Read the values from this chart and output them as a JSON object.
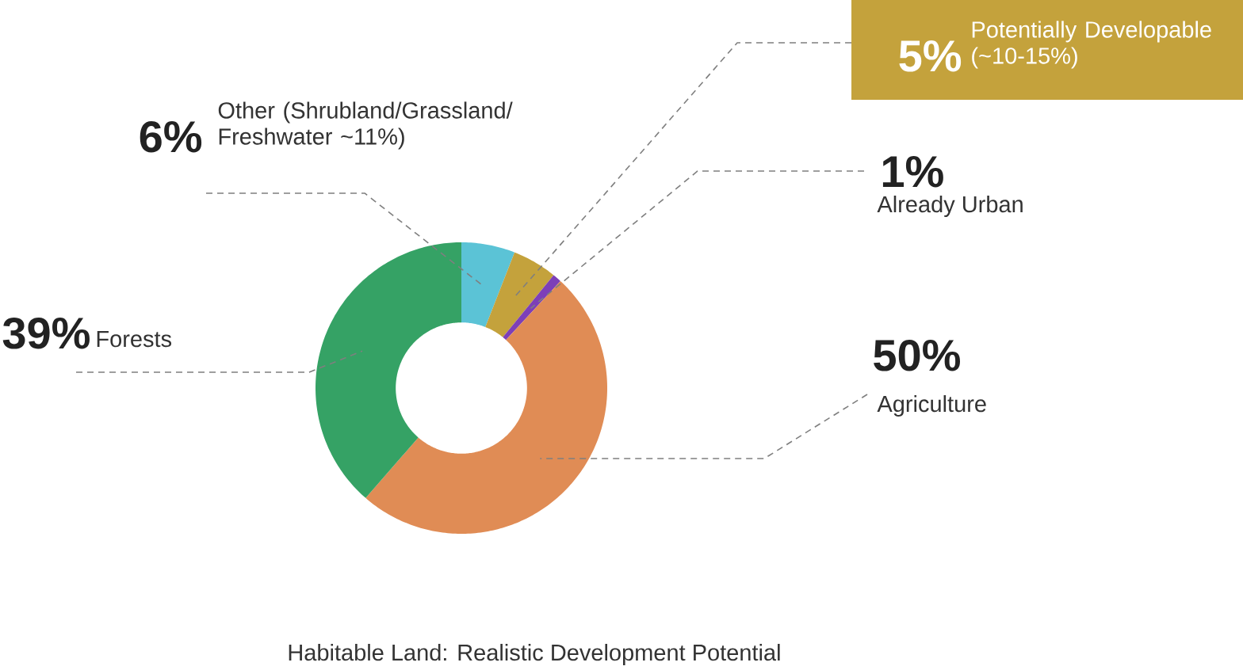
{
  "chart_data": {
    "type": "donut",
    "title": "Habitable Land: Realistic Development Potential",
    "categories": [
      "Other (Shrubland/Grassland/Freshwater ~11%)",
      "Potentially Developable (~10-15%)",
      "Already Urban",
      "Agriculture",
      "Forests"
    ],
    "values": [
      6,
      5,
      1,
      50,
      39
    ],
    "value_labels": [
      "6%",
      "5%",
      "1%",
      "50%",
      "39%"
    ],
    "colors": [
      "#5bc3d6",
      "#c4a23c",
      "#7d3fb8",
      "#e08c55",
      "#35a265"
    ]
  }
}
